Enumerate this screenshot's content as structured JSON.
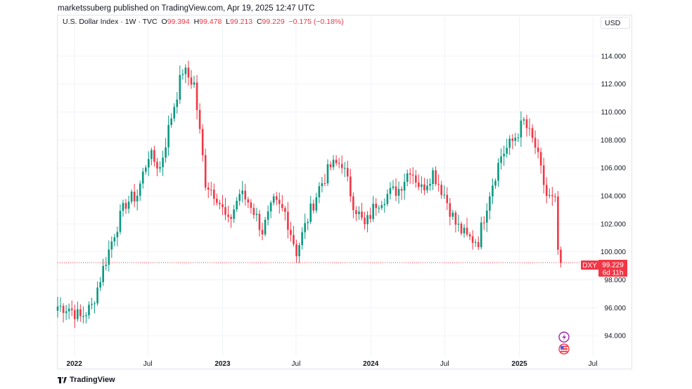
{
  "header": {
    "publisher_line": "marketssuberg published on TradingView.com, Apr 19, 2025 12:47 UTC"
  },
  "legend": {
    "symbol": "U.S. Dollar Index · 1W · TVC",
    "o_label": "O",
    "o_value": "99.394",
    "h_label": "H",
    "h_value": "99.478",
    "l_label": "L",
    "l_value": "99.213",
    "c_label": "C",
    "c_value": "99.229",
    "change": "−0.175 (−0.18%)"
  },
  "currency_button": "USD",
  "price_badge": {
    "ticker": "DXY",
    "price": "99.229",
    "countdown": "6d 11h"
  },
  "brand": "TradingView",
  "colors": {
    "up": "#089981",
    "down": "#f23645",
    "grid": "#f0f3fa",
    "price_line": "#f23645"
  },
  "icons": [
    "lightning-icon",
    "us-flag-icon"
  ],
  "chart_data": {
    "type": "candlestick",
    "interval": "1W",
    "ylim": [
      92.5,
      115.8
    ],
    "y_ticks": [
      "94.000",
      "96.000",
      "98.000",
      "100.000",
      "102.000",
      "104.000",
      "106.000",
      "108.000",
      "110.000",
      "112.000",
      "114.000"
    ],
    "x_ticks": [
      {
        "label": "2022",
        "date": "2022-01-01",
        "bold": true
      },
      {
        "label": "Jul",
        "date": "2022-07-01",
        "bold": false
      },
      {
        "label": "2023",
        "date": "2023-01-01",
        "bold": true
      },
      {
        "label": "Jul",
        "date": "2023-07-01",
        "bold": false
      },
      {
        "label": "2024",
        "date": "2024-01-01",
        "bold": true
      },
      {
        "label": "Jul",
        "date": "2024-07-01",
        "bold": false
      },
      {
        "label": "2025",
        "date": "2025-01-01",
        "bold": true
      },
      {
        "label": "Jul",
        "date": "2025-07-01",
        "bold": false
      }
    ],
    "x_range": [
      "2021-11-21",
      "2025-07-13"
    ],
    "last_close": 99.229,
    "weekly_closes": [
      {
        "date": "2021-11-21",
        "close": 96.1
      },
      {
        "date": "2021-12-19",
        "close": 96.0
      },
      {
        "date": "2022-01-16",
        "close": 95.3
      },
      {
        "date": "2022-02-13",
        "close": 96.1
      },
      {
        "date": "2022-03-13",
        "close": 98.8
      },
      {
        "date": "2022-04-10",
        "close": 101.4
      },
      {
        "date": "2022-05-08",
        "close": 103.5
      },
      {
        "date": "2022-06-05",
        "close": 104.1
      },
      {
        "date": "2022-07-03",
        "close": 107.0
      },
      {
        "date": "2022-07-31",
        "close": 106.0
      },
      {
        "date": "2022-08-28",
        "close": 109.7
      },
      {
        "date": "2022-09-25",
        "close": 113.0
      },
      {
        "date": "2022-10-23",
        "close": 112.0
      },
      {
        "date": "2022-11-20",
        "close": 105.0
      },
      {
        "date": "2022-12-18",
        "close": 104.0
      },
      {
        "date": "2023-01-15",
        "close": 102.0
      },
      {
        "date": "2023-02-12",
        "close": 104.2
      },
      {
        "date": "2023-03-12",
        "close": 103.4
      },
      {
        "date": "2023-04-09",
        "close": 101.5
      },
      {
        "date": "2023-05-07",
        "close": 103.5
      },
      {
        "date": "2023-06-04",
        "close": 102.8
      },
      {
        "date": "2023-07-02",
        "close": 100.0
      },
      {
        "date": "2023-07-30",
        "close": 102.4
      },
      {
        "date": "2023-08-27",
        "close": 104.6
      },
      {
        "date": "2023-09-24",
        "close": 106.1
      },
      {
        "date": "2023-10-22",
        "close": 106.4
      },
      {
        "date": "2023-11-19",
        "close": 103.5
      },
      {
        "date": "2023-12-17",
        "close": 101.8
      },
      {
        "date": "2024-01-14",
        "close": 103.5
      },
      {
        "date": "2024-02-11",
        "close": 104.1
      },
      {
        "date": "2024-03-10",
        "close": 104.5
      },
      {
        "date": "2024-04-07",
        "close": 106.0
      },
      {
        "date": "2024-05-05",
        "close": 104.5
      },
      {
        "date": "2024-06-02",
        "close": 105.7
      },
      {
        "date": "2024-06-30",
        "close": 104.1
      },
      {
        "date": "2024-07-28",
        "close": 102.0
      },
      {
        "date": "2024-08-25",
        "close": 101.0
      },
      {
        "date": "2024-09-22",
        "close": 100.8
      },
      {
        "date": "2024-10-20",
        "close": 104.3
      },
      {
        "date": "2024-11-17",
        "close": 106.9
      },
      {
        "date": "2024-12-15",
        "close": 107.9
      },
      {
        "date": "2025-01-12",
        "close": 109.3
      },
      {
        "date": "2025-02-09",
        "close": 107.5
      },
      {
        "date": "2025-03-09",
        "close": 104.0
      },
      {
        "date": "2025-03-30",
        "close": 103.5
      },
      {
        "date": "2025-04-06",
        "close": 100.1
      },
      {
        "date": "2025-04-13",
        "close": 99.229
      }
    ]
  }
}
